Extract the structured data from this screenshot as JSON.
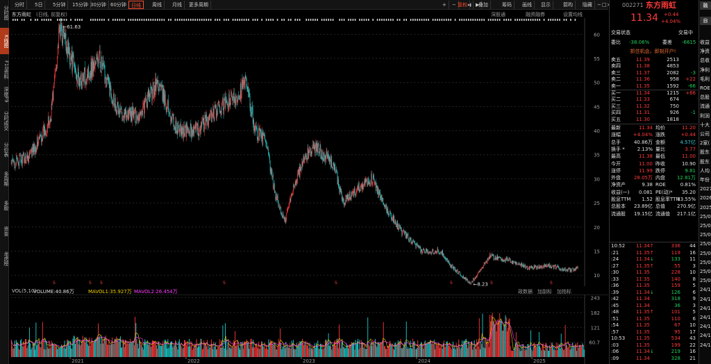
{
  "left_sidebar": [
    {
      "label": "分时图",
      "active": false
    },
    {
      "label": "K线图",
      "active": true
    },
    {
      "label": "F10资料",
      "active": false
    },
    {
      "label": "深度F9",
      "active": false
    },
    {
      "label": "分时成交",
      "active": false
    },
    {
      "label": "分价表",
      "active": false
    },
    {
      "label": "多周期",
      "active": false
    },
    {
      "label": "多股",
      "active": false
    },
    {
      "label": "资金",
      "active": false
    },
    {
      "label": "龙虎榜",
      "active": false
    }
  ],
  "toolbar": {
    "periods": [
      "分时",
      "5日",
      "5分钟",
      "15分钟",
      "30分钟",
      "60分钟",
      "日线",
      "周线",
      "月线",
      "更多周期"
    ],
    "active_period": "日线",
    "plus": "+",
    "minus": "−",
    "left": "◀",
    "right": "▶",
    "tools": [
      "复权",
      "叠加",
      "筹码",
      "画线",
      "显示",
      "箭昀",
      "隐藏"
    ]
  },
  "chart_header": {
    "name": "东方雨虹",
    "mode": "(日线, 前复权)",
    "right_links": [
      "深股通",
      "融资融券",
      "设置均线"
    ]
  },
  "chart_data": [
    {
      "type": "candlestick",
      "title": "东方雨虹 (日线, 前复权)",
      "x_ticks": [
        "2021",
        "2022",
        "2023",
        "2024",
        "2025"
      ],
      "y_ticks": [
        10.0,
        15.0,
        20.0,
        25.0,
        30.0,
        35.0,
        40.0,
        45.0,
        50.0,
        55.0,
        60.0
      ],
      "ylim": [
        8.0,
        61.63
      ],
      "annotations": [
        {
          "label": "61.63",
          "x": "2021-02",
          "y": 61.63
        },
        {
          "label": "8.23",
          "x": "2024-08",
          "y": 8.23
        }
      ],
      "trend": [
        {
          "x": "2020-09",
          "y": 33
        },
        {
          "x": "2020-11",
          "y": 35
        },
        {
          "x": "2021-01",
          "y": 42
        },
        {
          "x": "2021-02",
          "y": 61.63
        },
        {
          "x": "2021-04",
          "y": 50
        },
        {
          "x": "2021-06",
          "y": 55
        },
        {
          "x": "2021-08",
          "y": 44
        },
        {
          "x": "2021-10",
          "y": 43
        },
        {
          "x": "2021-12",
          "y": 50
        },
        {
          "x": "2022-02",
          "y": 40
        },
        {
          "x": "2022-04",
          "y": 40
        },
        {
          "x": "2022-06",
          "y": 44
        },
        {
          "x": "2022-08",
          "y": 47
        },
        {
          "x": "2022-09",
          "y": 50
        },
        {
          "x": "2022-10",
          "y": 40
        },
        {
          "x": "2022-11",
          "y": 38
        },
        {
          "x": "2022-12",
          "y": 27
        },
        {
          "x": "2023-01",
          "y": 21
        },
        {
          "x": "2023-02",
          "y": 29
        },
        {
          "x": "2023-03",
          "y": 34
        },
        {
          "x": "2023-04",
          "y": 37
        },
        {
          "x": "2023-06",
          "y": 33
        },
        {
          "x": "2023-07",
          "y": 25
        },
        {
          "x": "2023-09",
          "y": 29
        },
        {
          "x": "2023-10",
          "y": 30
        },
        {
          "x": "2023-11",
          "y": 25
        },
        {
          "x": "2024-01",
          "y": 19
        },
        {
          "x": "2024-03",
          "y": 15
        },
        {
          "x": "2024-05",
          "y": 15
        },
        {
          "x": "2024-06",
          "y": 12
        },
        {
          "x": "2024-08",
          "y": 8.23
        },
        {
          "x": "2024-09",
          "y": 11
        },
        {
          "x": "2024-10",
          "y": 14
        },
        {
          "x": "2024-12",
          "y": 13
        },
        {
          "x": "2025-02",
          "y": 11.5
        },
        {
          "x": "2025-04",
          "y": 12
        },
        {
          "x": "2025-06",
          "y": 11
        },
        {
          "x": "2025-07",
          "y": 11.34
        }
      ]
    },
    {
      "type": "bar",
      "title": "VOL(5,10)",
      "y_ticks": [
        60.7,
        121.0,
        182.0,
        243.0
      ],
      "ylim": [
        0,
        243
      ],
      "series": [
        {
          "name": "VOLUME",
          "value": "40.86万",
          "color": "#ffffff"
        },
        {
          "name": "MAVOL1",
          "value": "35.927万",
          "color": "#f0d000"
        },
        {
          "name": "MAVOL2",
          "value": "26.454万",
          "color": "#ff40ff"
        }
      ],
      "x_ticks": [
        "2021",
        "2022",
        "2023",
        "2024",
        "2025"
      ]
    }
  ],
  "vol_header": {
    "label": "VOL(5,10)",
    "volume": "VOLUME:40.86万",
    "mavol1": "MAVOL1:35.927万",
    "mavol2": "MAVOL2:26.454万",
    "right": [
      "政数据",
      "加副标",
      "加指标"
    ]
  },
  "quote": {
    "code": "002271",
    "name": "东方雨虹",
    "price": "11.34",
    "change": "+0.44",
    "change_pct": "+4.04%",
    "side_btns": [
      "融",
      "自"
    ],
    "status_label": "交易状态",
    "status_value": "交易中",
    "wb_label": "委比",
    "wb_value": "-38.06%",
    "wc_label": "委差",
    "wc_value": "-6615",
    "banner": "抓住机会，即刻开户!",
    "sells": [
      {
        "label": "卖五",
        "price": "11.39",
        "vol": "2513",
        "diff": ""
      },
      {
        "label": "卖四",
        "price": "11.38",
        "vol": "4853",
        "diff": ""
      },
      {
        "label": "卖三",
        "price": "11.37",
        "vol": "2082",
        "diff": "-3"
      },
      {
        "label": "卖二",
        "price": "11.36",
        "vol": "958",
        "diff": "+22"
      },
      {
        "label": "卖一",
        "price": "11.35",
        "vol": "1592",
        "diff": "-66"
      }
    ],
    "buys": [
      {
        "label": "买一",
        "price": "11.34",
        "vol": "1215",
        "diff": "+66"
      },
      {
        "label": "买二",
        "price": "11.33",
        "vol": "674",
        "diff": ""
      },
      {
        "label": "买三",
        "price": "11.32",
        "vol": "750",
        "diff": ""
      },
      {
        "label": "买四",
        "price": "11.31",
        "vol": "926",
        "diff": "-1"
      },
      {
        "label": "买五",
        "price": "11.30",
        "vol": "1818",
        "diff": ""
      }
    ],
    "stats": [
      {
        "l1": "最新",
        "v1": "11.34",
        "c1": "red",
        "l2": "均价",
        "v2": "11.20",
        "c2": "red"
      },
      {
        "l1": "涨幅",
        "v1": "+4.04%",
        "c1": "red",
        "l2": "涨跌",
        "v2": "+0.44",
        "c2": "red"
      },
      {
        "l1": "总手",
        "v1": "40.86万",
        "c1": "white",
        "l2": "金额",
        "v2": "4.57亿",
        "c2": "cyan"
      },
      {
        "l1": "换手 *",
        "v1": "2.13%",
        "c1": "white",
        "l2": "量比",
        "v2": "3.77",
        "c2": "red"
      },
      {
        "l1": "最高",
        "v1": "11.38",
        "c1": "red",
        "l2": "最低",
        "v2": "11.00",
        "c2": "red"
      },
      {
        "l1": "今开",
        "v1": "11.00",
        "c1": "red",
        "l2": "昨收",
        "v2": "10.90",
        "c2": "white"
      },
      {
        "l1": "涨停",
        "v1": "11.99",
        "c1": "red",
        "l2": "跌停",
        "v2": "9.81",
        "c2": "green"
      },
      {
        "l1": "外盘",
        "v1": "28.05万",
        "c1": "red",
        "l2": "内盘",
        "v2": "12.81万",
        "c2": "green"
      },
      {
        "l1": "净资产",
        "v1": "9.38",
        "c1": "white",
        "l2": "ROE",
        "v2": "0.81%",
        "c2": "white"
      },
      {
        "l1": "收益(一)",
        "v1": "0.081",
        "c1": "white",
        "l2": "PE(动)*",
        "v2": "35.20",
        "c2": "white"
      },
      {
        "l1": "股息TTM",
        "v1": "1.52",
        "c1": "white",
        "l2": "股息率TTM",
        "v2": "13.55%",
        "c2": "white"
      },
      {
        "l1": "总股本",
        "v1": "23.89亿",
        "c1": "white",
        "l2": "总值",
        "v2": "270.9亿",
        "c2": "white"
      },
      {
        "l1": "流通股",
        "v1": "19.15亿",
        "c1": "white",
        "l2": "流通值",
        "v2": "217.1亿",
        "c2": "white"
      }
    ],
    "ticks": [
      {
        "t": "10:52",
        "p": "11.34",
        "arr": "↑",
        "ac": "red",
        "v": "336",
        "vc": "red",
        "n": "44"
      },
      {
        "t": ":21",
        "p": "11.35",
        "arr": "↑",
        "ac": "red",
        "v": "119",
        "vc": "red",
        "n": "16"
      },
      {
        "t": ":24",
        "p": "11.34",
        "arr": "↓",
        "ac": "green",
        "v": "133",
        "vc": "green",
        "n": "11"
      },
      {
        "t": ":27",
        "p": "11.35",
        "arr": "↑",
        "ac": "red",
        "v": "55",
        "vc": "red",
        "n": "3"
      },
      {
        "t": ":30",
        "p": "11.35",
        "arr": "",
        "ac": "red",
        "v": "228",
        "vc": "red",
        "n": "10"
      },
      {
        "t": ":33",
        "p": "11.35",
        "arr": "",
        "ac": "red",
        "v": "140",
        "vc": "red",
        "n": "8"
      },
      {
        "t": ":36",
        "p": "11.35",
        "arr": "",
        "ac": "red",
        "v": "159",
        "vc": "red",
        "n": "5"
      },
      {
        "t": ":39",
        "p": "11.34",
        "arr": "↓",
        "ac": "green",
        "v": "126",
        "vc": "green",
        "n": "6"
      },
      {
        "t": ":42",
        "p": "11.34",
        "arr": "",
        "ac": "green",
        "v": "318",
        "vc": "green",
        "n": "9"
      },
      {
        "t": ":45",
        "p": "11.34",
        "arr": "",
        "ac": "green",
        "v": "36",
        "vc": "green",
        "n": "3"
      },
      {
        "t": ":48",
        "p": "11.35",
        "arr": "↑",
        "ac": "red",
        "v": "101",
        "vc": "red",
        "n": "5"
      },
      {
        "t": ":51",
        "p": "11.35",
        "arr": "",
        "ac": "red",
        "v": "110",
        "vc": "red",
        "n": "6"
      },
      {
        "t": ":54",
        "p": "11.35",
        "arr": "",
        "ac": "red",
        "v": "67",
        "vc": "red",
        "n": "10"
      },
      {
        "t": ":57",
        "p": "11.35",
        "arr": "",
        "ac": "red",
        "v": "95",
        "vc": "red",
        "n": "17"
      },
      {
        "t": "10:53",
        "p": "11.35",
        "arr": "",
        "ac": "red",
        "v": "534",
        "vc": "red",
        "n": "43"
      },
      {
        "t": ":03",
        "p": "11.35",
        "arr": "",
        "ac": "red",
        "v": "199",
        "vc": "red",
        "n": "22"
      },
      {
        "t": ":06",
        "p": "11.34",
        "arr": "↓",
        "ac": "green",
        "v": "219",
        "vc": "green",
        "n": "16"
      },
      {
        "t": ":09",
        "p": "11.34",
        "arr": "",
        "ac": "green",
        "v": "328",
        "vc": "green",
        "n": "21"
      }
    ],
    "edge": [
      "收益",
      "净资",
      "总收",
      "净利",
      "毛利",
      "ROE",
      "总股",
      "流通",
      "利润",
      "十大",
      "公司",
      "2家(",
      "股东",
      "股东",
      "人均",
      "年份",
      "2027",
      "2026",
      "2025",
      "25/0",
      "25/0",
      "25/0",
      "25/0",
      "25/0",
      "25/0",
      "25/0",
      "25/0",
      "24/1",
      "24/1",
      "24/1",
      "24/1",
      "24/1",
      "24/1",
      "24/1"
    ]
  },
  "colors": {
    "up": "#ff3b3b",
    "down": "#1fd0d0",
    "accent": "#ff4a2a",
    "ma_yellow": "#f0d000",
    "ma_pink": "#ff40ff"
  }
}
